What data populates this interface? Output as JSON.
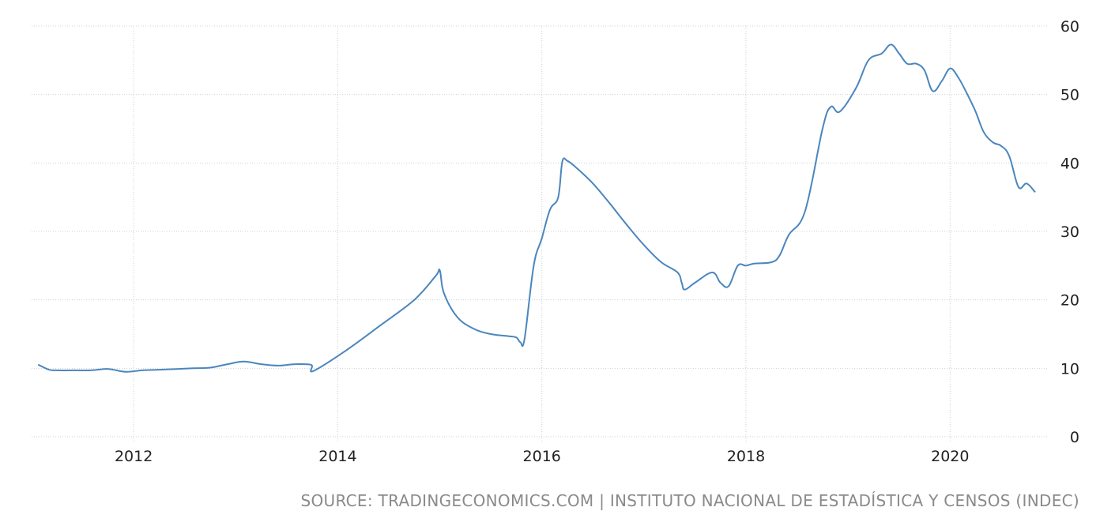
{
  "source_text": "SOURCE: TRADINGECONOMICS.COM | INSTITUTO NACIONAL DE ESTADÍSTICA Y CENSOS (INDEC)",
  "colors": {
    "line": "#4a86bd",
    "grid": "#d0d0d0",
    "tick_text": "#222222",
    "source_text": "#8a8a8a"
  },
  "chart_data": {
    "type": "line",
    "title": "",
    "xlabel": "",
    "ylabel": "",
    "xlim": [
      2011.0,
      2020.95
    ],
    "ylim": [
      0,
      60
    ],
    "y_ticks": [
      0,
      10,
      20,
      30,
      40,
      50,
      60
    ],
    "x_ticks": [
      2012,
      2014,
      2016,
      2018,
      2020
    ],
    "y_ticks_labels": [
      "0",
      "10",
      "20",
      "30",
      "40",
      "50",
      "60"
    ],
    "x_ticks_labels": [
      "2012",
      "2014",
      "2016",
      "2018",
      "2020"
    ],
    "y_axis_position": "right",
    "grid": true,
    "legend": "none",
    "series": [
      {
        "x": [
          2011.07,
          2011.17,
          2011.25,
          2011.42,
          2011.58,
          2011.75,
          2011.92,
          2012.08,
          2012.25,
          2012.42,
          2012.58,
          2012.75,
          2012.92,
          2013.08,
          2013.25,
          2013.42,
          2013.58,
          2013.74,
          2013.76,
          2014.08,
          2014.42,
          2014.75,
          2014.96,
          2015.0,
          2015.04,
          2015.17,
          2015.33,
          2015.5,
          2015.67,
          2015.75,
          2015.79,
          2015.83,
          2015.92,
          2016.0,
          2016.08,
          2016.16,
          2016.2,
          2016.25,
          2016.33,
          2016.5,
          2016.67,
          2016.83,
          2017.0,
          2017.17,
          2017.33,
          2017.37,
          2017.4,
          2017.5,
          2017.67,
          2017.75,
          2017.83,
          2017.92,
          2018.0,
          2018.08,
          2018.25,
          2018.33,
          2018.42,
          2018.58,
          2018.75,
          2018.83,
          2018.92,
          2019.08,
          2019.2,
          2019.33,
          2019.42,
          2019.5,
          2019.58,
          2019.67,
          2019.75,
          2019.83,
          2019.92,
          2020.0,
          2020.08,
          2020.17,
          2020.25,
          2020.33,
          2020.42,
          2020.5,
          2020.58,
          2020.67,
          2020.75,
          2020.83
        ],
        "y": [
          10.5,
          9.8,
          9.7,
          9.7,
          9.7,
          9.9,
          9.5,
          9.7,
          9.8,
          9.9,
          10.0,
          10.1,
          10.6,
          11.0,
          10.6,
          10.4,
          10.6,
          10.5,
          9.6,
          12.6,
          16.3,
          20.0,
          23.5,
          24.3,
          21.0,
          17.5,
          15.8,
          15.0,
          14.7,
          14.5,
          13.8,
          14.3,
          25.0,
          29.0,
          33.2,
          35.0,
          40.2,
          40.3,
          39.4,
          37.0,
          34.0,
          31.0,
          28.0,
          25.5,
          24.0,
          22.5,
          21.5,
          22.5,
          24.0,
          22.5,
          22.0,
          25.0,
          25.0,
          25.3,
          25.5,
          26.5,
          29.5,
          33.0,
          45.0,
          48.2,
          47.5,
          51.0,
          55.0,
          56.0,
          57.3,
          56.0,
          54.5,
          54.5,
          53.5,
          50.5,
          52.0,
          53.8,
          52.5,
          50.0,
          47.5,
          44.5,
          43.0,
          42.5,
          41.0,
          36.5,
          37.0,
          35.8
        ]
      }
    ]
  }
}
